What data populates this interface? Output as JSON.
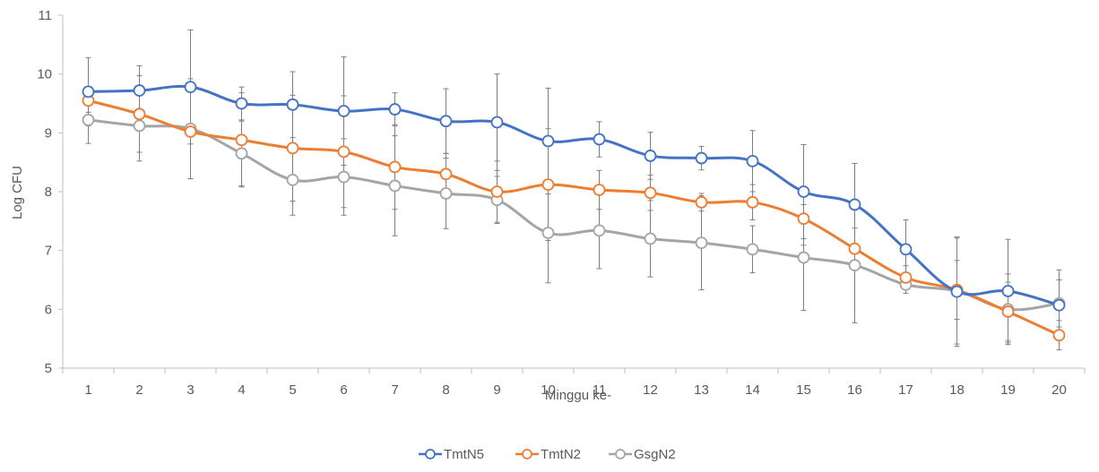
{
  "chart_data": {
    "type": "line",
    "title": "",
    "xlabel": "Minggu ke-",
    "ylabel": "Log CFU",
    "ylim": [
      5,
      11
    ],
    "yticks": [
      5,
      6,
      7,
      8,
      9,
      10,
      11
    ],
    "categories": [
      "1",
      "2",
      "3",
      "4",
      "5",
      "6",
      "7",
      "8",
      "9",
      "10",
      "11",
      "12",
      "13",
      "14",
      "15",
      "16",
      "17",
      "18",
      "19",
      "20"
    ],
    "grid": false,
    "error_bars": true,
    "legend_position": "bottom",
    "series": [
      {
        "name": "TmtN5",
        "color": "#4472C4",
        "values": [
          9.7,
          9.72,
          9.78,
          9.5,
          9.48,
          9.37,
          9.4,
          9.2,
          9.18,
          8.86,
          8.89,
          8.61,
          8.57,
          8.52,
          8.0,
          7.78,
          7.02,
          6.3,
          6.31,
          6.07
        ],
        "errors": [
          0.58,
          0.42,
          0.97,
          0.28,
          0.56,
          0.92,
          0.28,
          0.55,
          0.82,
          0.9,
          0.3,
          0.4,
          0.2,
          0.52,
          0.8,
          0.7,
          0.5,
          0.93,
          0.88,
          0.6
        ]
      },
      {
        "name": "TmtN2",
        "color": "#ED7D31",
        "values": [
          9.55,
          9.32,
          9.02,
          8.88,
          8.74,
          8.68,
          8.42,
          8.3,
          8.0,
          8.12,
          8.03,
          7.98,
          7.82,
          7.82,
          7.54,
          7.03,
          6.54,
          6.33,
          5.96,
          5.56
        ],
        "errors": [
          0.2,
          0.65,
          0.8,
          0.8,
          0.9,
          0.95,
          0.72,
          0.35,
          0.52,
          0.95,
          0.33,
          0.3,
          0.15,
          0.3,
          0.45,
          0.35,
          0.2,
          0.5,
          0.5,
          0.25
        ]
      },
      {
        "name": "GsgN2",
        "color": "#A5A5A5",
        "values": [
          9.22,
          9.12,
          9.07,
          8.65,
          8.2,
          8.25,
          8.1,
          7.97,
          7.86,
          7.3,
          7.34,
          7.2,
          7.13,
          7.02,
          6.88,
          6.75,
          6.42,
          6.31,
          6.0,
          6.1
        ],
        "errors": [
          0.4,
          0.6,
          0.85,
          0.55,
          0.6,
          0.65,
          0.85,
          0.6,
          0.4,
          0.85,
          0.65,
          0.65,
          0.8,
          0.4,
          0.9,
          0.98,
          0.15,
          0.9,
          0.6,
          0.4
        ]
      }
    ]
  }
}
